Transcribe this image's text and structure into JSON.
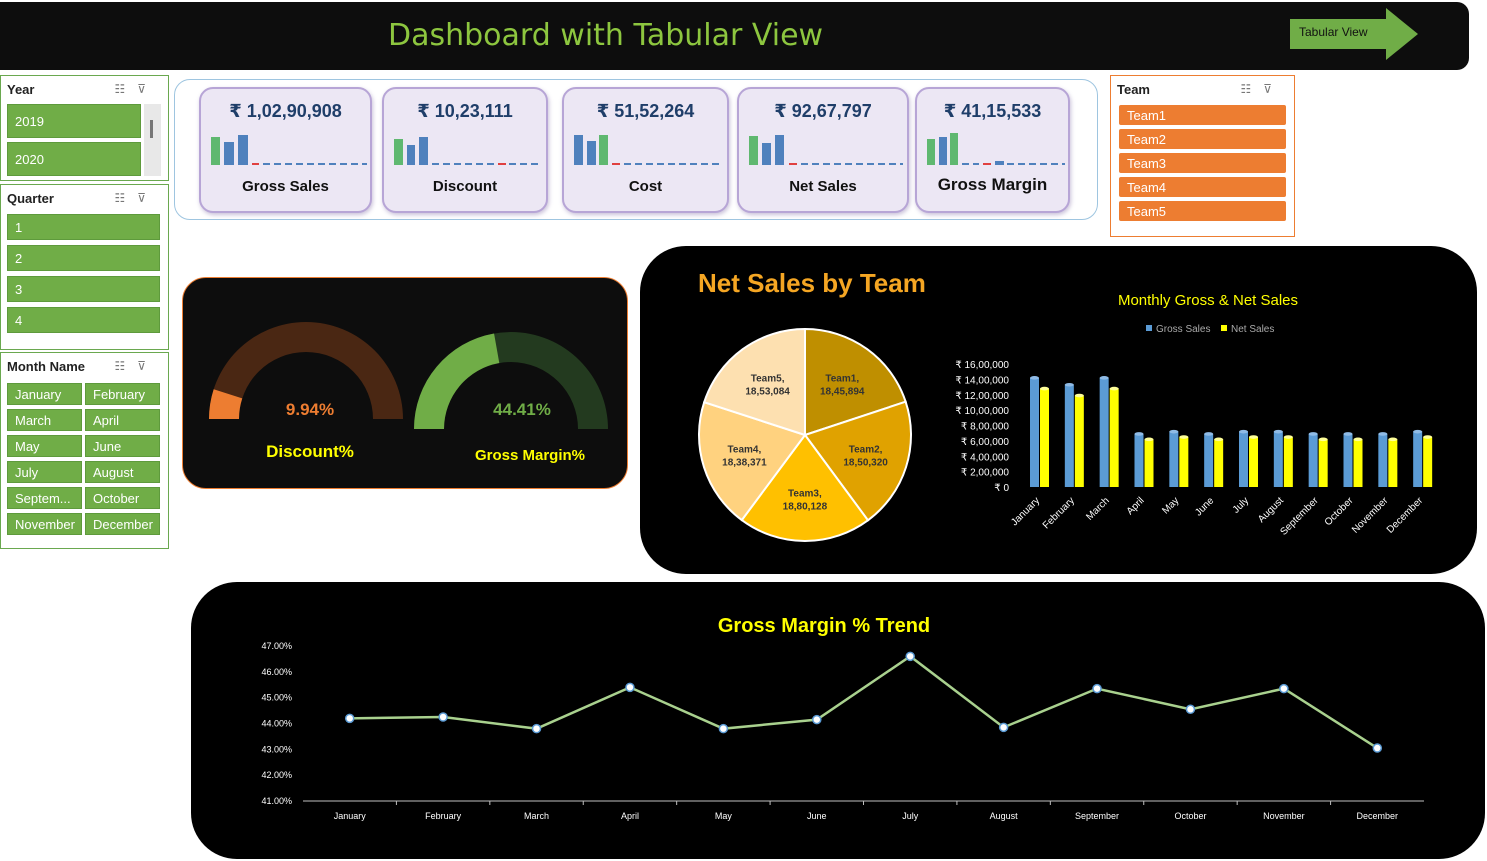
{
  "header": {
    "title": "Dashboard with Tabular View",
    "nav_button_label": "Tabular View"
  },
  "colors": {
    "slicer_green": "#70ad47",
    "team_orange": "#ed7d31",
    "title_green": "#8dc63f",
    "chart_yellow": "#ffff00",
    "gross_blue": "#5b9bd5"
  },
  "slicers": {
    "year": {
      "title": "Year",
      "items": [
        "2019",
        "2020"
      ]
    },
    "quarter": {
      "title": "Quarter",
      "items": [
        "1",
        "2",
        "3",
        "4"
      ]
    },
    "month": {
      "title": "Month Name",
      "items": [
        "January",
        "February",
        "March",
        "April",
        "May",
        "June",
        "July",
        "August",
        "Septem...",
        "October",
        "November",
        "December"
      ]
    },
    "team": {
      "title": "Team",
      "items": [
        "Team1",
        "Team2",
        "Team3",
        "Team4",
        "Team5"
      ]
    },
    "icons": [
      "multi-select-icon",
      "clear-filter-icon"
    ]
  },
  "kpis": [
    {
      "value": "₹ 1,02,90,908",
      "label": "Gross Sales"
    },
    {
      "value": "₹ 10,23,111",
      "label": "Discount"
    },
    {
      "value": "₹ 51,52,264",
      "label": "Cost"
    },
    {
      "value": "₹ 92,67,797",
      "label": "Net Sales"
    },
    {
      "value": "₹ 41,15,533",
      "label": "Gross Margin"
    }
  ],
  "gauges": [
    {
      "value_text": "9.94%",
      "label": "Discount%",
      "fraction": 0.0994
    },
    {
      "value_text": "44.41%",
      "label": "Gross Margin%",
      "fraction": 0.4441
    }
  ],
  "chart_data": [
    {
      "type": "pie",
      "title": "Net Sales by Team",
      "slices": [
        {
          "name": "Team1",
          "value": 1845894,
          "label": "18,45,894",
          "color": "#bf8f00"
        },
        {
          "name": "Team2",
          "value": 1850320,
          "label": "18,50,320",
          "color": "#e0a200"
        },
        {
          "name": "Team3",
          "value": 1880128,
          "label": "18,80,128",
          "color": "#ffc000"
        },
        {
          "name": "Team4",
          "value": 1838371,
          "label": "18,38,371",
          "color": "#ffd27f"
        },
        {
          "name": "Team5",
          "value": 1853084,
          "label": "18,53,084",
          "color": "#fde0b0"
        }
      ]
    },
    {
      "type": "bar",
      "title": "Monthly Gross & Net Sales",
      "categories": [
        "January",
        "February",
        "March",
        "April",
        "May",
        "June",
        "July",
        "August",
        "September",
        "October",
        "November",
        "December"
      ],
      "series": [
        {
          "name": "Gross Sales",
          "color": "#5b9bd5",
          "values": [
            1420000,
            1330000,
            1420000,
            690000,
            720000,
            690000,
            720000,
            720000,
            690000,
            690000,
            690000,
            720000
          ]
        },
        {
          "name": "Net Sales",
          "color": "#ffff00",
          "values": [
            1280000,
            1190000,
            1280000,
            620000,
            650000,
            620000,
            650000,
            650000,
            620000,
            620000,
            620000,
            650000
          ]
        }
      ],
      "y_ticks": [
        "₹ 0",
        "₹ 2,00,000",
        "₹ 4,00,000",
        "₹ 6,00,000",
        "₹ 8,00,000",
        "₹ 10,00,000",
        "₹ 12,00,000",
        "₹ 14,00,000",
        "₹ 16,00,000"
      ],
      "ylim": [
        0,
        1600000
      ],
      "legend": "top"
    },
    {
      "type": "line",
      "title": "Gross Margin % Trend",
      "categories": [
        "January",
        "February",
        "March",
        "April",
        "May",
        "June",
        "July",
        "August",
        "September",
        "October",
        "November",
        "December"
      ],
      "values": [
        44.2,
        44.25,
        43.8,
        45.4,
        43.8,
        44.15,
        46.6,
        43.85,
        45.35,
        44.55,
        45.35,
        43.05
      ],
      "y_ticks": [
        "41.00%",
        "42.00%",
        "43.00%",
        "44.00%",
        "45.00%",
        "46.00%",
        "47.00%"
      ],
      "ylim": [
        41,
        47
      ]
    }
  ]
}
